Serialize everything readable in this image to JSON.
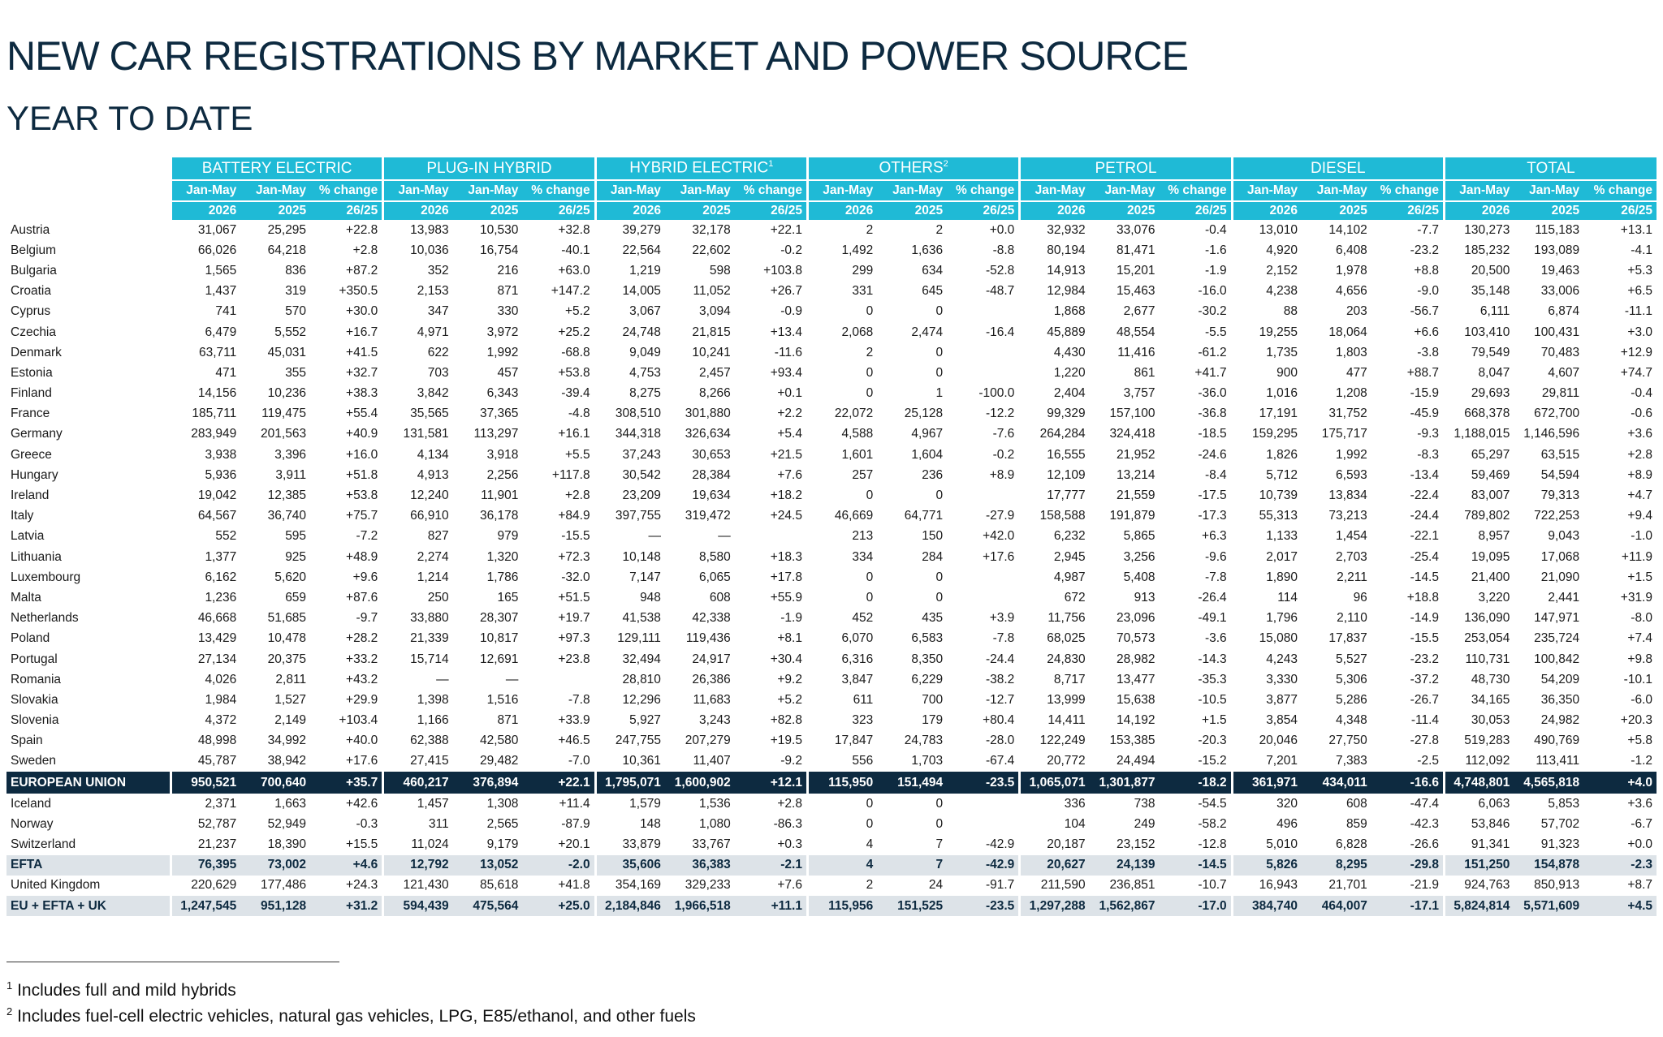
{
  "title": "NEW CAR REGISTRATIONS BY MARKET AND POWER SOURCE",
  "subtitle": "YEAR TO DATE",
  "groups": [
    {
      "label": "BATTERY ELECTRIC",
      "sup": ""
    },
    {
      "label": "PLUG-IN HYBRID",
      "sup": ""
    },
    {
      "label": "HYBRID ELECTRIC",
      "sup": "1"
    },
    {
      "label": "OTHERS",
      "sup": "2"
    },
    {
      "label": "PETROL",
      "sup": ""
    },
    {
      "label": "DIESEL",
      "sup": ""
    },
    {
      "label": "TOTAL",
      "sup": ""
    }
  ],
  "subheaders": {
    "cur": "Jan-May",
    "cur_year": "2026",
    "prev": "Jan-May",
    "prev_year": "2025",
    "chg": "% change",
    "chg_year": "26/25"
  },
  "rows": [
    {
      "country": "Austria",
      "type": "country",
      "values": [
        "31,067",
        "25,295",
        "+22.8",
        "13,983",
        "10,530",
        "+32.8",
        "39,279",
        "32,178",
        "+22.1",
        "2",
        "2",
        "+0.0",
        "32,932",
        "33,076",
        "-0.4",
        "13,010",
        "14,102",
        "-7.7",
        "130,273",
        "115,183",
        "+13.1"
      ]
    },
    {
      "country": "Belgium",
      "type": "country",
      "values": [
        "66,026",
        "64,218",
        "+2.8",
        "10,036",
        "16,754",
        "-40.1",
        "22,564",
        "22,602",
        "-0.2",
        "1,492",
        "1,636",
        "-8.8",
        "80,194",
        "81,471",
        "-1.6",
        "4,920",
        "6,408",
        "-23.2",
        "185,232",
        "193,089",
        "-4.1"
      ]
    },
    {
      "country": "Bulgaria",
      "type": "country",
      "values": [
        "1,565",
        "836",
        "+87.2",
        "352",
        "216",
        "+63.0",
        "1,219",
        "598",
        "+103.8",
        "299",
        "634",
        "-52.8",
        "14,913",
        "15,201",
        "-1.9",
        "2,152",
        "1,978",
        "+8.8",
        "20,500",
        "19,463",
        "+5.3"
      ]
    },
    {
      "country": "Croatia",
      "type": "country",
      "values": [
        "1,437",
        "319",
        "+350.5",
        "2,153",
        "871",
        "+147.2",
        "14,005",
        "11,052",
        "+26.7",
        "331",
        "645",
        "-48.7",
        "12,984",
        "15,463",
        "-16.0",
        "4,238",
        "4,656",
        "-9.0",
        "35,148",
        "33,006",
        "+6.5"
      ]
    },
    {
      "country": "Cyprus",
      "type": "country",
      "values": [
        "741",
        "570",
        "+30.0",
        "347",
        "330",
        "+5.2",
        "3,067",
        "3,094",
        "-0.9",
        "0",
        "0",
        "",
        "1,868",
        "2,677",
        "-30.2",
        "88",
        "203",
        "-56.7",
        "6,111",
        "6,874",
        "-11.1"
      ]
    },
    {
      "country": "Czechia",
      "type": "country",
      "values": [
        "6,479",
        "5,552",
        "+16.7",
        "4,971",
        "3,972",
        "+25.2",
        "24,748",
        "21,815",
        "+13.4",
        "2,068",
        "2,474",
        "-16.4",
        "45,889",
        "48,554",
        "-5.5",
        "19,255",
        "18,064",
        "+6.6",
        "103,410",
        "100,431",
        "+3.0"
      ]
    },
    {
      "country": "Denmark",
      "type": "country",
      "values": [
        "63,711",
        "45,031",
        "+41.5",
        "622",
        "1,992",
        "-68.8",
        "9,049",
        "10,241",
        "-11.6",
        "2",
        "0",
        "",
        "4,430",
        "11,416",
        "-61.2",
        "1,735",
        "1,803",
        "-3.8",
        "79,549",
        "70,483",
        "+12.9"
      ]
    },
    {
      "country": "Estonia",
      "type": "country",
      "values": [
        "471",
        "355",
        "+32.7",
        "703",
        "457",
        "+53.8",
        "4,753",
        "2,457",
        "+93.4",
        "0",
        "0",
        "",
        "1,220",
        "861",
        "+41.7",
        "900",
        "477",
        "+88.7",
        "8,047",
        "4,607",
        "+74.7"
      ]
    },
    {
      "country": "Finland",
      "type": "country",
      "values": [
        "14,156",
        "10,236",
        "+38.3",
        "3,842",
        "6,343",
        "-39.4",
        "8,275",
        "8,266",
        "+0.1",
        "0",
        "1",
        "-100.0",
        "2,404",
        "3,757",
        "-36.0",
        "1,016",
        "1,208",
        "-15.9",
        "29,693",
        "29,811",
        "-0.4"
      ]
    },
    {
      "country": "France",
      "type": "country",
      "values": [
        "185,711",
        "119,475",
        "+55.4",
        "35,565",
        "37,365",
        "-4.8",
        "308,510",
        "301,880",
        "+2.2",
        "22,072",
        "25,128",
        "-12.2",
        "99,329",
        "157,100",
        "-36.8",
        "17,191",
        "31,752",
        "-45.9",
        "668,378",
        "672,700",
        "-0.6"
      ]
    },
    {
      "country": "Germany",
      "type": "country",
      "values": [
        "283,949",
        "201,563",
        "+40.9",
        "131,581",
        "113,297",
        "+16.1",
        "344,318",
        "326,634",
        "+5.4",
        "4,588",
        "4,967",
        "-7.6",
        "264,284",
        "324,418",
        "-18.5",
        "159,295",
        "175,717",
        "-9.3",
        "1,188,015",
        "1,146,596",
        "+3.6"
      ]
    },
    {
      "country": "Greece",
      "type": "country",
      "values": [
        "3,938",
        "3,396",
        "+16.0",
        "4,134",
        "3,918",
        "+5.5",
        "37,243",
        "30,653",
        "+21.5",
        "1,601",
        "1,604",
        "-0.2",
        "16,555",
        "21,952",
        "-24.6",
        "1,826",
        "1,992",
        "-8.3",
        "65,297",
        "63,515",
        "+2.8"
      ]
    },
    {
      "country": "Hungary",
      "type": "country",
      "values": [
        "5,936",
        "3,911",
        "+51.8",
        "4,913",
        "2,256",
        "+117.8",
        "30,542",
        "28,384",
        "+7.6",
        "257",
        "236",
        "+8.9",
        "12,109",
        "13,214",
        "-8.4",
        "5,712",
        "6,593",
        "-13.4",
        "59,469",
        "54,594",
        "+8.9"
      ]
    },
    {
      "country": "Ireland",
      "type": "country",
      "values": [
        "19,042",
        "12,385",
        "+53.8",
        "12,240",
        "11,901",
        "+2.8",
        "23,209",
        "19,634",
        "+18.2",
        "0",
        "0",
        "",
        "17,777",
        "21,559",
        "-17.5",
        "10,739",
        "13,834",
        "-22.4",
        "83,007",
        "79,313",
        "+4.7"
      ]
    },
    {
      "country": "Italy",
      "type": "country",
      "values": [
        "64,567",
        "36,740",
        "+75.7",
        "66,910",
        "36,178",
        "+84.9",
        "397,755",
        "319,472",
        "+24.5",
        "46,669",
        "64,771",
        "-27.9",
        "158,588",
        "191,879",
        "-17.3",
        "55,313",
        "73,213",
        "-24.4",
        "789,802",
        "722,253",
        "+9.4"
      ]
    },
    {
      "country": "Latvia",
      "type": "country",
      "values": [
        "552",
        "595",
        "-7.2",
        "827",
        "979",
        "-15.5",
        "—",
        "—",
        "",
        "213",
        "150",
        "+42.0",
        "6,232",
        "5,865",
        "+6.3",
        "1,133",
        "1,454",
        "-22.1",
        "8,957",
        "9,043",
        "-1.0"
      ]
    },
    {
      "country": "Lithuania",
      "type": "country",
      "values": [
        "1,377",
        "925",
        "+48.9",
        "2,274",
        "1,320",
        "+72.3",
        "10,148",
        "8,580",
        "+18.3",
        "334",
        "284",
        "+17.6",
        "2,945",
        "3,256",
        "-9.6",
        "2,017",
        "2,703",
        "-25.4",
        "19,095",
        "17,068",
        "+11.9"
      ]
    },
    {
      "country": "Luxembourg",
      "type": "country",
      "values": [
        "6,162",
        "5,620",
        "+9.6",
        "1,214",
        "1,786",
        "-32.0",
        "7,147",
        "6,065",
        "+17.8",
        "0",
        "0",
        "",
        "4,987",
        "5,408",
        "-7.8",
        "1,890",
        "2,211",
        "-14.5",
        "21,400",
        "21,090",
        "+1.5"
      ]
    },
    {
      "country": "Malta",
      "type": "country",
      "values": [
        "1,236",
        "659",
        "+87.6",
        "250",
        "165",
        "+51.5",
        "948",
        "608",
        "+55.9",
        "0",
        "0",
        "",
        "672",
        "913",
        "-26.4",
        "114",
        "96",
        "+18.8",
        "3,220",
        "2,441",
        "+31.9"
      ]
    },
    {
      "country": "Netherlands",
      "type": "country",
      "values": [
        "46,668",
        "51,685",
        "-9.7",
        "33,880",
        "28,307",
        "+19.7",
        "41,538",
        "42,338",
        "-1.9",
        "452",
        "435",
        "+3.9",
        "11,756",
        "23,096",
        "-49.1",
        "1,796",
        "2,110",
        "-14.9",
        "136,090",
        "147,971",
        "-8.0"
      ]
    },
    {
      "country": "Poland",
      "type": "country",
      "values": [
        "13,429",
        "10,478",
        "+28.2",
        "21,339",
        "10,817",
        "+97.3",
        "129,111",
        "119,436",
        "+8.1",
        "6,070",
        "6,583",
        "-7.8",
        "68,025",
        "70,573",
        "-3.6",
        "15,080",
        "17,837",
        "-15.5",
        "253,054",
        "235,724",
        "+7.4"
      ]
    },
    {
      "country": "Portugal",
      "type": "country",
      "values": [
        "27,134",
        "20,375",
        "+33.2",
        "15,714",
        "12,691",
        "+23.8",
        "32,494",
        "24,917",
        "+30.4",
        "6,316",
        "8,350",
        "-24.4",
        "24,830",
        "28,982",
        "-14.3",
        "4,243",
        "5,527",
        "-23.2",
        "110,731",
        "100,842",
        "+9.8"
      ]
    },
    {
      "country": "Romania",
      "type": "country",
      "values": [
        "4,026",
        "2,811",
        "+43.2",
        "—",
        "—",
        "",
        "28,810",
        "26,386",
        "+9.2",
        "3,847",
        "6,229",
        "-38.2",
        "8,717",
        "13,477",
        "-35.3",
        "3,330",
        "5,306",
        "-37.2",
        "48,730",
        "54,209",
        "-10.1"
      ]
    },
    {
      "country": "Slovakia",
      "type": "country",
      "values": [
        "1,984",
        "1,527",
        "+29.9",
        "1,398",
        "1,516",
        "-7.8",
        "12,296",
        "11,683",
        "+5.2",
        "611",
        "700",
        "-12.7",
        "13,999",
        "15,638",
        "-10.5",
        "3,877",
        "5,286",
        "-26.7",
        "34,165",
        "36,350",
        "-6.0"
      ]
    },
    {
      "country": "Slovenia",
      "type": "country",
      "values": [
        "4,372",
        "2,149",
        "+103.4",
        "1,166",
        "871",
        "+33.9",
        "5,927",
        "3,243",
        "+82.8",
        "323",
        "179",
        "+80.4",
        "14,411",
        "14,192",
        "+1.5",
        "3,854",
        "4,348",
        "-11.4",
        "30,053",
        "24,982",
        "+20.3"
      ]
    },
    {
      "country": "Spain",
      "type": "country",
      "values": [
        "48,998",
        "34,992",
        "+40.0",
        "62,388",
        "42,580",
        "+46.5",
        "247,755",
        "207,279",
        "+19.5",
        "17,847",
        "24,783",
        "-28.0",
        "122,249",
        "153,385",
        "-20.3",
        "20,046",
        "27,750",
        "-27.8",
        "519,283",
        "490,769",
        "+5.8"
      ]
    },
    {
      "country": "Sweden",
      "type": "country",
      "values": [
        "45,787",
        "38,942",
        "+17.6",
        "27,415",
        "29,482",
        "-7.0",
        "10,361",
        "11,407",
        "-9.2",
        "556",
        "1,703",
        "-67.4",
        "20,772",
        "24,494",
        "-15.2",
        "7,201",
        "7,383",
        "-2.5",
        "112,092",
        "113,411",
        "-1.2"
      ]
    },
    {
      "country": "EUROPEAN UNION",
      "type": "eu",
      "values": [
        "950,521",
        "700,640",
        "+35.7",
        "460,217",
        "376,894",
        "+22.1",
        "1,795,071",
        "1,600,902",
        "+12.1",
        "115,950",
        "151,494",
        "-23.5",
        "1,065,071",
        "1,301,877",
        "-18.2",
        "361,971",
        "434,011",
        "-16.6",
        "4,748,801",
        "4,565,818",
        "+4.0"
      ]
    },
    {
      "country": "Iceland",
      "type": "country",
      "values": [
        "2,371",
        "1,663",
        "+42.6",
        "1,457",
        "1,308",
        "+11.4",
        "1,579",
        "1,536",
        "+2.8",
        "0",
        "0",
        "",
        "336",
        "738",
        "-54.5",
        "320",
        "608",
        "-47.4",
        "6,063",
        "5,853",
        "+3.6"
      ]
    },
    {
      "country": "Norway",
      "type": "country",
      "values": [
        "52,787",
        "52,949",
        "-0.3",
        "311",
        "2,565",
        "-87.9",
        "148",
        "1,080",
        "-86.3",
        "0",
        "0",
        "",
        "104",
        "249",
        "-58.2",
        "496",
        "859",
        "-42.3",
        "53,846",
        "57,702",
        "-6.7"
      ]
    },
    {
      "country": "Switzerland",
      "type": "country",
      "values": [
        "21,237",
        "18,390",
        "+15.5",
        "11,024",
        "9,179",
        "+20.1",
        "33,879",
        "33,767",
        "+0.3",
        "4",
        "7",
        "-42.9",
        "20,187",
        "23,152",
        "-12.8",
        "5,010",
        "6,828",
        "-26.6",
        "91,341",
        "91,323",
        "+0.0"
      ]
    },
    {
      "country": "EFTA",
      "type": "total",
      "values": [
        "76,395",
        "73,002",
        "+4.6",
        "12,792",
        "13,052",
        "-2.0",
        "35,606",
        "36,383",
        "-2.1",
        "4",
        "7",
        "-42.9",
        "20,627",
        "24,139",
        "-14.5",
        "5,826",
        "8,295",
        "-29.8",
        "151,250",
        "154,878",
        "-2.3"
      ]
    },
    {
      "country": "United Kingdom",
      "type": "country",
      "values": [
        "220,629",
        "177,486",
        "+24.3",
        "121,430",
        "85,618",
        "+41.8",
        "354,169",
        "329,233",
        "+7.6",
        "2",
        "24",
        "-91.7",
        "211,590",
        "236,851",
        "-10.7",
        "16,943",
        "21,701",
        "-21.9",
        "924,763",
        "850,913",
        "+8.7"
      ]
    },
    {
      "country": "EU + EFTA + UK",
      "type": "total",
      "values": [
        "1,247,545",
        "951,128",
        "+31.2",
        "594,439",
        "475,564",
        "+25.0",
        "2,184,846",
        "1,966,518",
        "+11.1",
        "115,956",
        "151,525",
        "-23.5",
        "1,297,288",
        "1,562,867",
        "-17.0",
        "384,740",
        "464,007",
        "-17.1",
        "5,824,814",
        "5,571,609",
        "+4.5"
      ]
    }
  ],
  "footnotes": [
    {
      "mark": "1",
      "text": " Includes full and mild hybrids"
    },
    {
      "mark": "2",
      "text": " Includes fuel-cell electric vehicles, natural gas vehicles, LPG, E85/ethanol, and other fuels"
    }
  ],
  "colors": {
    "header": "#1fbad6",
    "eu_row": "#0d2a40",
    "total_row": "#dde3e8",
    "title": "#0d2a40"
  }
}
